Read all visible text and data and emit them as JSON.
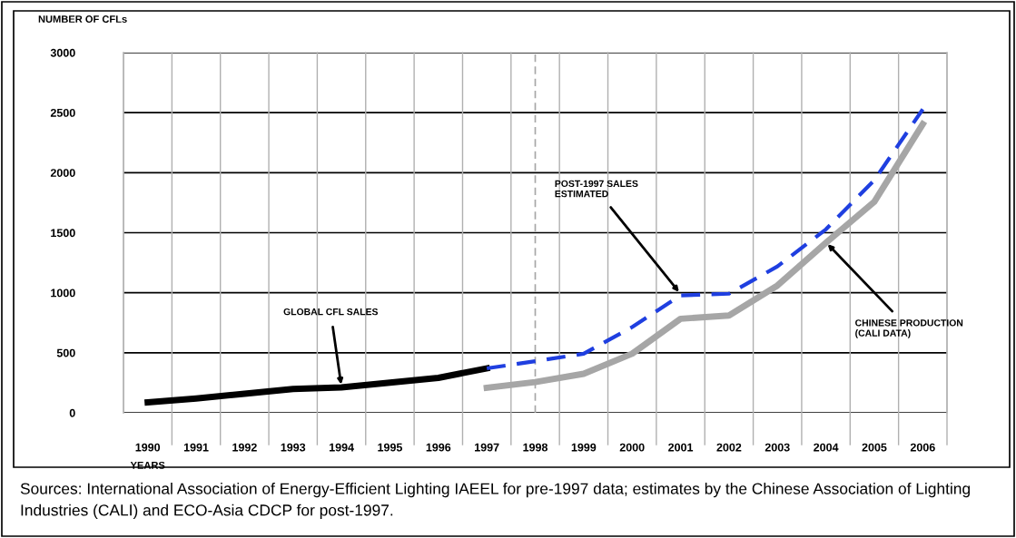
{
  "chart_data": {
    "type": "line",
    "ylabel": "NUMBER OF CFLs",
    "xlabel": "YEARS",
    "categories": [
      "1990",
      "1991",
      "1992",
      "1993",
      "1994",
      "1995",
      "1996",
      "1997",
      "1998",
      "1999",
      "2000",
      "2001",
      "2002",
      "2003",
      "2004",
      "2005",
      "2006"
    ],
    "series": [
      {
        "color": "#000000",
        "line_style": "solid",
        "values": [
          87,
          119,
          159,
          198,
          212,
          251,
          291,
          370,
          null,
          null,
          null,
          null,
          null,
          null,
          null,
          null,
          null
        ]
      },
      {
        "color": "#1f3fe0",
        "line_style": "dashed",
        "values": [
          null,
          null,
          null,
          null,
          null,
          null,
          null,
          370,
          430,
          492,
          714,
          978,
          992,
          1219,
          1528,
          1938,
          2528
        ]
      },
      {
        "color": "#a6a6a6",
        "line_style": "solid",
        "values": [
          null,
          null,
          null,
          null,
          null,
          null,
          null,
          208,
          256,
          325,
          492,
          783,
          811,
          1060,
          1416,
          1758,
          2404
        ]
      }
    ],
    "ylim": [
      0,
      3000
    ],
    "yticks": [
      0,
      500,
      1000,
      1500,
      2000,
      2500,
      3000
    ],
    "grid": true,
    "marker": "none",
    "ref_lines": [
      {
        "axis": "x",
        "value": "1998",
        "color": "#a6a6a6",
        "line_style": "dashed"
      }
    ],
    "annotations": [
      {
        "text": "GLOBAL CFL SALES",
        "x": "1994",
        "y": 215
      },
      {
        "text": "POST-1997 SALES\nESTIMATED",
        "x": "2001",
        "y": 990
      },
      {
        "text": "CHINESE PRODUCTION\n(CALI DATA)",
        "x": "2004",
        "y": 1420
      },
      "Sources: International Association of Energy-Efficient Lighting IAEEL for pre-1997 data; estimates by the Chinese Association of Lighting Industries (CALI) and ECO-Asia CDCP for post-1997."
    ]
  }
}
